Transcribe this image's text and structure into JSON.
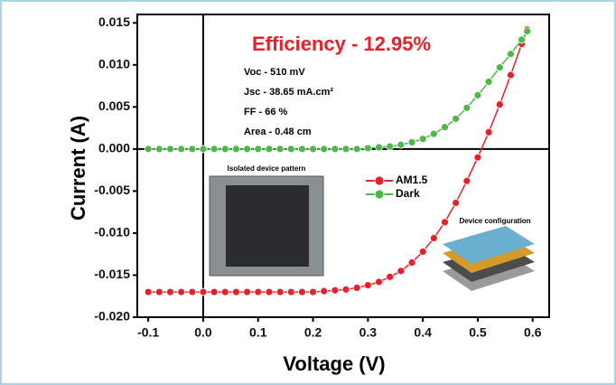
{
  "chart_data": {
    "type": "line",
    "x_label": "Voltage (V)",
    "y_label": "Current (A)",
    "annotations": {
      "efficiency": "Efficiency - 12.95%",
      "voc": "Voc - 510 mV",
      "jsc": "Jsc - 38.65 mA.cm²",
      "ff": "FF - 66 %",
      "area": "Area - 0.48 cm",
      "inset_left": "Isolated device pattern",
      "inset_right": "Device configuration"
    },
    "x": [
      -0.1,
      -0.08,
      -0.06,
      -0.04,
      -0.02,
      0,
      0.02,
      0.04,
      0.06,
      0.08,
      0.1,
      0.12,
      0.14,
      0.16,
      0.18,
      0.2,
      0.22,
      0.24,
      0.26,
      0.28,
      0.3,
      0.32,
      0.34,
      0.36,
      0.38,
      0.4,
      0.42,
      0.44,
      0.46,
      0.48,
      0.5,
      0.52,
      0.54,
      0.56,
      0.58,
      0.59
    ],
    "series": [
      {
        "name": "AM1.5",
        "color": "#e8202a",
        "values": [
          -0.017,
          -0.017,
          -0.017,
          -0.017,
          -0.017,
          -0.017,
          -0.017,
          -0.017,
          -0.017,
          -0.017,
          -0.017,
          -0.017,
          -0.017,
          -0.017,
          -0.017,
          -0.017,
          -0.0169,
          -0.0168,
          -0.0167,
          -0.0165,
          -0.0162,
          -0.0158,
          -0.0152,
          -0.0145,
          -0.0135,
          -0.0122,
          -0.0106,
          -0.0087,
          -0.0064,
          -0.0038,
          -0.001,
          0.002,
          0.0053,
          0.0088,
          0.0125,
          0.0142
        ]
      },
      {
        "name": "Dark",
        "color": "#4cb848",
        "values": [
          0,
          0,
          0,
          0,
          0,
          0,
          0,
          0,
          0,
          0,
          0,
          0,
          0,
          0,
          0,
          0,
          0,
          0,
          0,
          0,
          0.0001,
          0.0002,
          0.0003,
          0.0005,
          0.0008,
          0.0012,
          0.0018,
          0.0026,
          0.0036,
          0.0049,
          0.0064,
          0.008,
          0.0097,
          0.0113,
          0.013,
          0.014
        ]
      }
    ],
    "xlim": [
      -0.12,
      0.63
    ],
    "ylim": [
      -0.02,
      0.016
    ],
    "xticks": [
      -0.1,
      {
        "value": 0,
        "label": "0.0"
      },
      0.1,
      0.2,
      0.3,
      0.4,
      0.5,
      0.6
    ],
    "yticks": [
      0.015,
      {
        "value": 0.01,
        "label": "0.010"
      },
      0.005,
      {
        "value": 0,
        "label": "0.000"
      },
      -0.005,
      {
        "value": -0.01,
        "label": "-0.010"
      },
      -0.015,
      {
        "value": -0.02,
        "label": "-0.020"
      }
    ]
  }
}
